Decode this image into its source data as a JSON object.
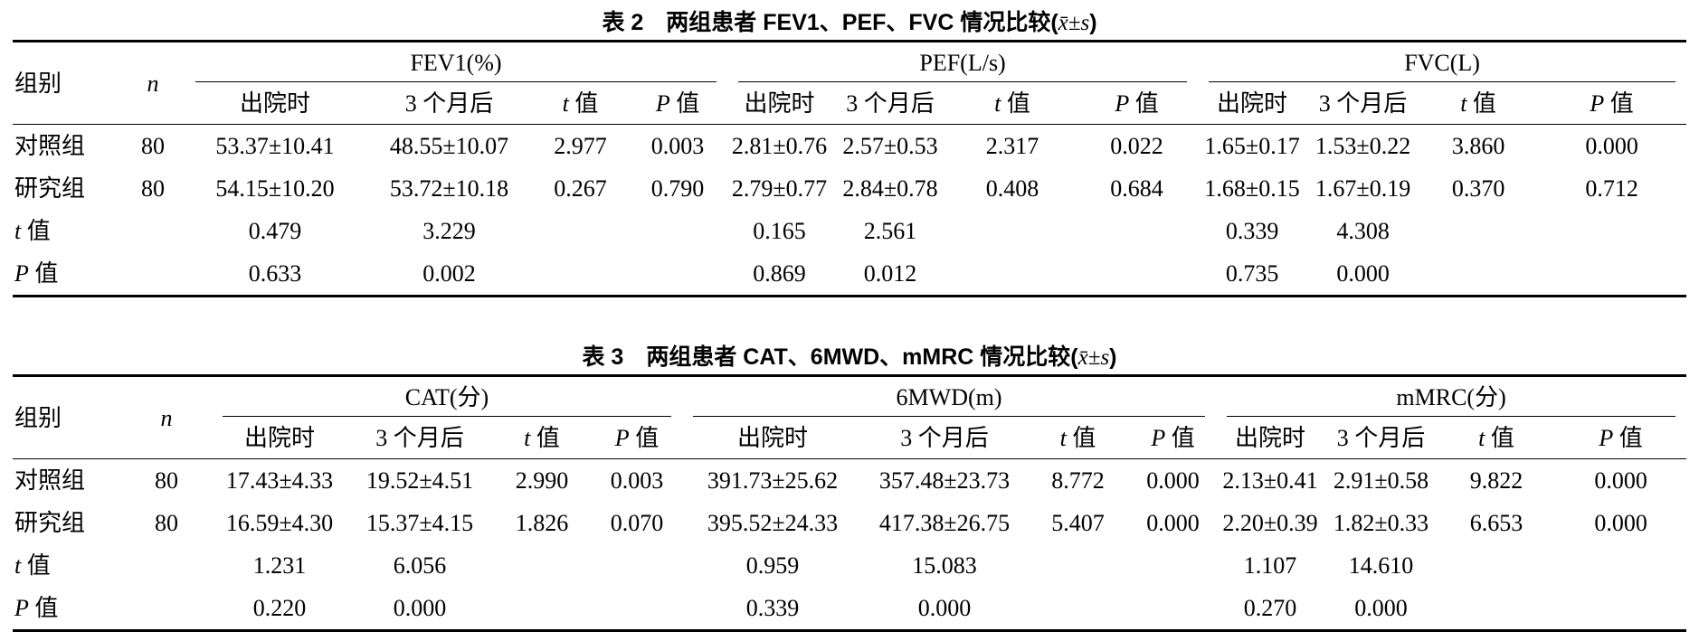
{
  "table2": {
    "caption": "表 2　两组患者 FEV1、PEF、FVC 情况比较(",
    "caption_stat": "x̄±s",
    "caption_end": ")",
    "group_label": "组别",
    "n_label": "n",
    "groups": [
      "FEV1(%)",
      "PEF(L/s)",
      "FVC(L)"
    ],
    "subheaders": [
      "出院时",
      "3 个月后",
      "t 值",
      "P 值"
    ],
    "rows": [
      {
        "label": "对照组",
        "n": "80",
        "cells": [
          "53.37±10.41",
          "48.55±10.07",
          "2.977",
          "0.003",
          "2.81±0.76",
          "2.57±0.53",
          "2.317",
          "0.022",
          "1.65±0.17",
          "1.53±0.22",
          "3.860",
          "0.000"
        ]
      },
      {
        "label": "研究组",
        "n": "80",
        "cells": [
          "54.15±10.20",
          "53.72±10.18",
          "0.267",
          "0.790",
          "2.79±0.77",
          "2.84±0.78",
          "0.408",
          "0.684",
          "1.68±0.15",
          "1.67±0.19",
          "0.370",
          "0.712"
        ]
      },
      {
        "label": "t 值",
        "n": "",
        "cells": [
          "0.479",
          "3.229",
          "",
          "",
          "0.165",
          "2.561",
          "",
          "",
          "0.339",
          "4.308",
          "",
          ""
        ]
      },
      {
        "label": "P 值",
        "n": "",
        "cells": [
          "0.633",
          "0.002",
          "",
          "",
          "0.869",
          "0.012",
          "",
          "",
          "0.735",
          "0.000",
          "",
          ""
        ]
      }
    ]
  },
  "table3": {
    "caption": "表 3　两组患者 CAT、6MWD、mMRC 情况比较(",
    "caption_stat": "x̄±s",
    "caption_end": ")",
    "group_label": "组别",
    "n_label": "n",
    "groups": [
      "CAT(分)",
      "6MWD(m)",
      "mMRC(分)"
    ],
    "subheaders": [
      "出院时",
      "3 个月后",
      "t 值",
      "P 值"
    ],
    "rows": [
      {
        "label": "对照组",
        "n": "80",
        "cells": [
          "17.43±4.33",
          "19.52±4.51",
          "2.990",
          "0.003",
          "391.73±25.62",
          "357.48±23.73",
          "8.772",
          "0.000",
          "2.13±0.41",
          "2.91±0.58",
          "9.822",
          "0.000"
        ]
      },
      {
        "label": "研究组",
        "n": "80",
        "cells": [
          "16.59±4.30",
          "15.37±4.15",
          "1.826",
          "0.070",
          "395.52±24.33",
          "417.38±26.75",
          "5.407",
          "0.000",
          "2.20±0.39",
          "1.82±0.33",
          "6.653",
          "0.000"
        ]
      },
      {
        "label": "t 值",
        "n": "",
        "cells": [
          "1.231",
          "6.056",
          "",
          "",
          "0.959",
          "15.083",
          "",
          "",
          "1.107",
          "14.610",
          "",
          ""
        ]
      },
      {
        "label": "P 值",
        "n": "",
        "cells": [
          "0.220",
          "0.000",
          "",
          "",
          "0.339",
          "0.000",
          "",
          "",
          "0.270",
          "0.000",
          "",
          ""
        ]
      }
    ]
  }
}
